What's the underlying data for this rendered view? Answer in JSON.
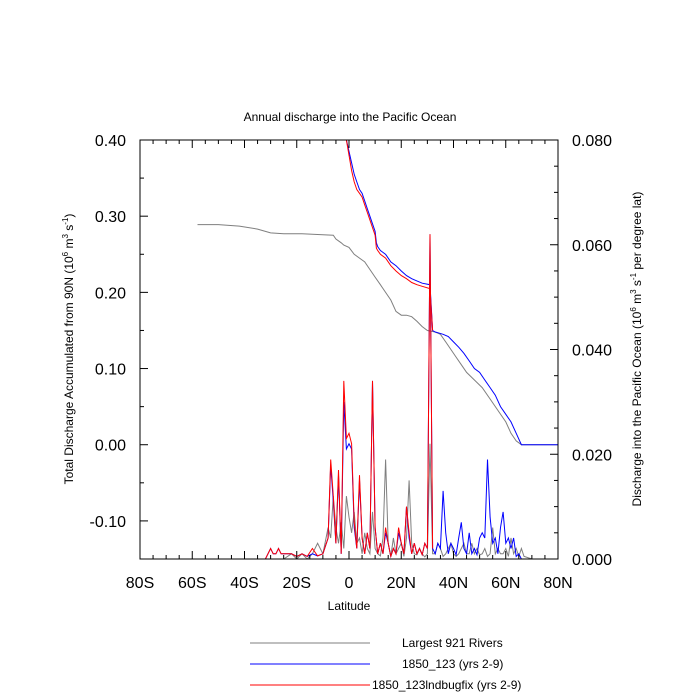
{
  "chart_data": {
    "type": "line",
    "title": "Annual discharge into the Pacific Ocean",
    "xlabel": "Latitude",
    "ylabel_left": "Total Discharge Accumulated from 90N (10",
    "ylabel_left_sup1": "6",
    "ylabel_left_mid": " m",
    "ylabel_left_sup2": "3",
    "ylabel_left_mid2": " s",
    "ylabel_left_sup3": "-1",
    "ylabel_left_end": ")",
    "ylabel_right": "Discharge into the Pacific Ocean (10",
    "ylabel_right_sup1": "6",
    "ylabel_right_mid": " m",
    "ylabel_right_sup2": "3",
    "ylabel_right_mid2": " s",
    "ylabel_right_sup3": "-1",
    "ylabel_right_end": " per degree lat)",
    "xlim": [
      -80,
      80
    ],
    "ylim_left": [
      -0.15,
      0.4
    ],
    "ylim_right": [
      0.0,
      0.08
    ],
    "x_ticks": [
      -80,
      -60,
      -40,
      -20,
      0,
      20,
      40,
      60,
      80
    ],
    "x_tick_labels": [
      "80S",
      "60S",
      "40S",
      "20S",
      "0",
      "20N",
      "40N",
      "60N",
      "80N"
    ],
    "y_left_ticks": [
      -0.1,
      0.0,
      0.1,
      0.2,
      0.3,
      0.4
    ],
    "y_left_tick_labels": [
      "-0.10",
      "0.00",
      "0.10",
      "0.20",
      "0.30",
      "0.40"
    ],
    "y_right_ticks": [
      0.0,
      0.02,
      0.04,
      0.06,
      0.08
    ],
    "y_right_tick_labels": [
      "0.000",
      "0.020",
      "0.040",
      "0.060",
      "0.080"
    ],
    "legend_position": "bottom",
    "legend": [
      {
        "label": "Largest 921 Rivers",
        "color": "#7f7f7f"
      },
      {
        "label": "1850_123 (yrs 2-9)",
        "color": "#0000ff"
      },
      {
        "label": "1850_123lndbugfix (yrs 2-9)",
        "color": "#ff0000"
      }
    ],
    "series": [
      {
        "name": "Largest 921 Rivers",
        "color": "#7f7f7f",
        "axis": "left",
        "role": "accumulated",
        "x": [
          -58,
          -50,
          -42,
          -35,
          -30,
          -25,
          -18,
          -12,
          -6,
          -5,
          -3,
          -2,
          0,
          2,
          4,
          6,
          8,
          10,
          12,
          14,
          16,
          18,
          20,
          22,
          24,
          26,
          28,
          30,
          33,
          35,
          37,
          39,
          41,
          43,
          45,
          48,
          51,
          54,
          57,
          60,
          62,
          64,
          66,
          70,
          80
        ],
        "y": [
          0.289,
          0.289,
          0.287,
          0.283,
          0.278,
          0.277,
          0.277,
          0.276,
          0.275,
          0.27,
          0.265,
          0.262,
          0.259,
          0.25,
          0.245,
          0.24,
          0.23,
          0.22,
          0.21,
          0.2,
          0.19,
          0.175,
          0.17,
          0.17,
          0.168,
          0.162,
          0.155,
          0.15,
          0.148,
          0.145,
          0.135,
          0.125,
          0.115,
          0.105,
          0.095,
          0.085,
          0.075,
          0.06,
          0.045,
          0.03,
          0.015,
          0.005,
          0.0,
          0.0,
          0.0
        ]
      },
      {
        "name": "1850_123 (yrs 2-9)",
        "color": "#0000ff",
        "axis": "left",
        "role": "accumulated",
        "x": [
          -1,
          0,
          1,
          2,
          3,
          4,
          5,
          6,
          7,
          8,
          9,
          10,
          10.5,
          11,
          12,
          14,
          16,
          18,
          20,
          22,
          24,
          26,
          28,
          31,
          32,
          33,
          34,
          36,
          38,
          40,
          42,
          44,
          46,
          48,
          50,
          52,
          54,
          56,
          58,
          60,
          62,
          64,
          66,
          70,
          80
        ],
        "y": [
          0.4,
          0.385,
          0.37,
          0.355,
          0.345,
          0.335,
          0.33,
          0.32,
          0.31,
          0.3,
          0.29,
          0.28,
          0.265,
          0.26,
          0.255,
          0.25,
          0.24,
          0.235,
          0.228,
          0.222,
          0.218,
          0.215,
          0.212,
          0.21,
          0.15,
          0.148,
          0.147,
          0.145,
          0.142,
          0.135,
          0.128,
          0.12,
          0.11,
          0.1,
          0.095,
          0.085,
          0.075,
          0.065,
          0.05,
          0.04,
          0.03,
          0.015,
          0.0,
          0.0,
          0.0
        ]
      },
      {
        "name": "1850_123lndbugfix (yrs 2-9)",
        "color": "#ff0000",
        "axis": "left",
        "role": "accumulated",
        "x": [
          -1,
          0,
          1,
          2,
          3,
          4,
          5,
          6,
          7,
          8,
          9,
          10,
          10.5,
          11,
          12,
          14,
          16,
          18,
          20,
          22,
          24,
          26,
          28,
          31,
          32
        ],
        "y": [
          0.4,
          0.38,
          0.36,
          0.345,
          0.335,
          0.33,
          0.325,
          0.315,
          0.305,
          0.295,
          0.285,
          0.275,
          0.258,
          0.255,
          0.25,
          0.245,
          0.235,
          0.228,
          0.222,
          0.218,
          0.213,
          0.21,
          0.208,
          0.205,
          0.15
        ]
      },
      {
        "name": "Largest 921 Rivers",
        "color": "#7f7f7f",
        "axis": "right",
        "role": "per-degree",
        "x": [
          -60,
          -35,
          -25,
          -22,
          -20,
          -18,
          -16,
          -14,
          -12,
          -10,
          -8,
          -7,
          -6,
          -5,
          -4,
          -3,
          -2,
          -1,
          0,
          1,
          2,
          3,
          4,
          5,
          6,
          7,
          8,
          9,
          10,
          11,
          12,
          13,
          14,
          15,
          16,
          17,
          18,
          19,
          20,
          21,
          22,
          23,
          24,
          25,
          26,
          27,
          28,
          29,
          30,
          31,
          32,
          33,
          34,
          35,
          36,
          37,
          38,
          39,
          40,
          41,
          42,
          43,
          44,
          45,
          46,
          47,
          48,
          49,
          50,
          51,
          52,
          53,
          54,
          55,
          56,
          57,
          58,
          59,
          60,
          61,
          62,
          63,
          64,
          65,
          66,
          67,
          70,
          80
        ],
        "y": [
          0,
          0,
          0,
          0.001,
          0,
          0.001,
          0,
          0.001,
          0.003,
          0.001,
          0.006,
          0.004,
          0.012,
          0.006,
          0.003,
          0.007,
          0.002,
          0.012,
          0.008,
          0.005,
          0.009,
          0.003,
          0.004,
          0.001,
          0.005,
          0.002,
          0.001,
          0.009,
          0.002,
          0.001,
          0.0006,
          0.004,
          0.019,
          0.003,
          0.0005,
          0.004,
          0.001,
          0.002,
          0.003,
          0.0005,
          0.004,
          0.015,
          0.003,
          0.001,
          0.0008,
          0.002,
          0.001,
          0.0004,
          0.001,
          0.022,
          0.001,
          0.001,
          0.003,
          0.002,
          0.0005,
          0.001,
          0.002,
          0.003,
          0.001,
          0.0005,
          0.001,
          0.002,
          0.003,
          0.001,
          0.001,
          0.003,
          0.001,
          0.002,
          0.0008,
          0.001,
          0.002,
          0.0005,
          0.001,
          0.006,
          0.001,
          0.002,
          0.001,
          0.001,
          0.002,
          0.0005,
          0.004,
          0.001,
          0.002,
          0.0005,
          0.002,
          0.0005,
          0,
          0
        ]
      },
      {
        "name": "1850_123 (yrs 2-9)",
        "color": "#0000ff",
        "axis": "right",
        "role": "per-degree",
        "x": [
          -60,
          -32,
          -30,
          -29,
          -28,
          -27,
          -26,
          -24,
          -22,
          -20,
          -18,
          -16,
          -14,
          -12,
          -10,
          -8,
          -7,
          -6,
          -5,
          -4,
          -3,
          -2,
          -1,
          0,
          1,
          2,
          3,
          4,
          5,
          6,
          7,
          8,
          9,
          10,
          11,
          12,
          13,
          14,
          15,
          16,
          17,
          18,
          19,
          20,
          21,
          22,
          23,
          24,
          25,
          26,
          27,
          28,
          29,
          30,
          31,
          32,
          33,
          34,
          35,
          36,
          37,
          38,
          39,
          40,
          41,
          42,
          43,
          44,
          45,
          46,
          47,
          48,
          49,
          50,
          51,
          52,
          53,
          54,
          55,
          56,
          57,
          58,
          59,
          60,
          61,
          62,
          63,
          64,
          65,
          66,
          67,
          70,
          80
        ],
        "y": [
          0,
          0,
          0.002,
          0.001,
          0.001,
          0.002,
          0.001,
          0.001,
          0.001,
          0.0005,
          0.001,
          0.0005,
          0.001,
          0.0006,
          0.001,
          0.004,
          0.018,
          0.011,
          0.003,
          0.016,
          0.001,
          0.03,
          0.021,
          0.022,
          0.021,
          0.006,
          0.002,
          0.015,
          0.004,
          0.001,
          0.005,
          0.002,
          0.034,
          0.006,
          0.001,
          0.003,
          0.001,
          0.005,
          0.003,
          0.0005,
          0.002,
          0.001,
          0.005,
          0.003,
          0.001,
          0.01,
          0.004,
          0.001,
          0.003,
          0.001,
          0.002,
          0.0008,
          0.003,
          0.002,
          0.062,
          0.002,
          0.001,
          0.003,
          0.002,
          0.013,
          0.005,
          0.001,
          0.003,
          0.002,
          0.0008,
          0.004,
          0.007,
          0.002,
          0.001,
          0.005,
          0.001,
          0.002,
          0.0008,
          0.004,
          0.005,
          0.004,
          0.019,
          0.008,
          0.003,
          0.004,
          0.001,
          0.006,
          0.009,
          0.003,
          0.004,
          0.002,
          0.004,
          0.0005,
          0.001,
          0,
          0,
          0,
          0
        ]
      },
      {
        "name": "1850_123lndbugfix (yrs 2-9)",
        "color": "#ff0000",
        "axis": "right",
        "role": "per-degree",
        "x": [
          -60,
          -32,
          -30,
          -29,
          -28,
          -27,
          -26,
          -24,
          -22,
          -20,
          -18,
          -16,
          -14,
          -12,
          -10,
          -8,
          -7,
          -6,
          -5,
          -4,
          -3,
          -2,
          -1,
          0,
          1,
          2,
          3,
          4,
          5,
          6,
          7,
          8,
          9,
          10,
          11,
          12,
          13,
          14,
          15,
          16,
          17,
          18,
          19,
          20,
          21,
          22,
          23,
          24,
          25,
          26,
          27,
          28,
          29,
          30,
          31,
          32
        ],
        "y": [
          0,
          0,
          0.002,
          0.001,
          0.001,
          0.002,
          0.001,
          0.001,
          0.001,
          0.0005,
          0.001,
          0.0005,
          0.002,
          0.0006,
          0.001,
          0.004,
          0.019,
          0.012,
          0.003,
          0.017,
          0.001,
          0.034,
          0.023,
          0.024,
          0.022,
          0.007,
          0.002,
          0.016,
          0.004,
          0.001,
          0.005,
          0.002,
          0.034,
          0.006,
          0.001,
          0.003,
          0.001,
          0.006,
          0.003,
          0.0005,
          0.002,
          0.001,
          0.006,
          0.003,
          0.001,
          0.01,
          0.005,
          0.001,
          0.003,
          0.001,
          0.002,
          0.0008,
          0.003,
          0.002,
          0.062,
          0.002
        ]
      }
    ]
  }
}
